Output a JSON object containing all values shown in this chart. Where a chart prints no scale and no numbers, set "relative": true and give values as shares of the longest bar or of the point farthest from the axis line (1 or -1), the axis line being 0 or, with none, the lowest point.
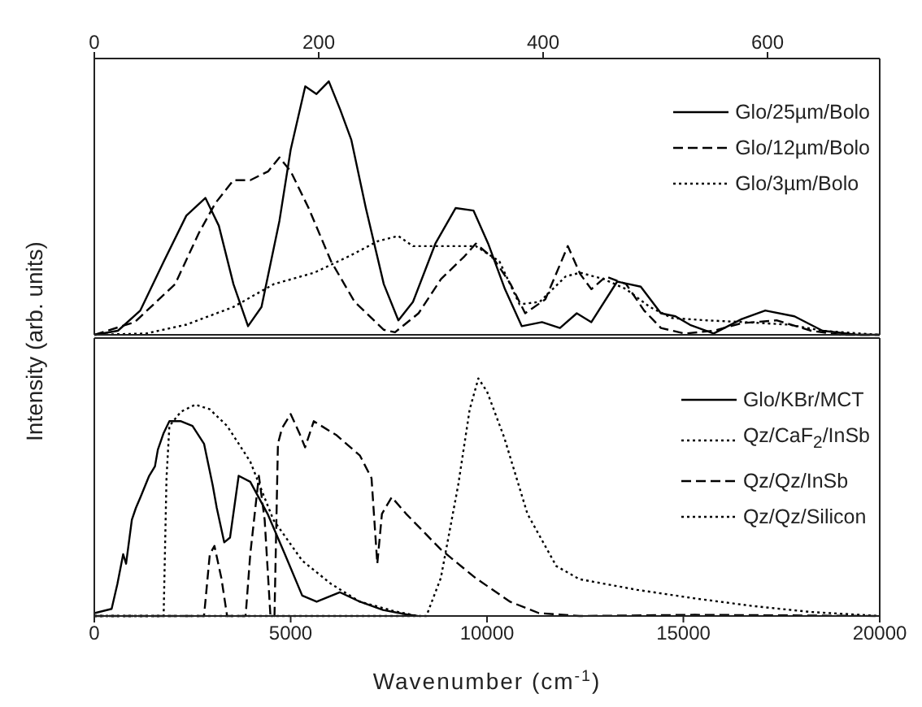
{
  "chart_data": [
    {
      "type": "line",
      "ylabel": "Intensity (arb. units)",
      "relative": true,
      "xlim": [
        0,
        700
      ],
      "xticks": [
        0,
        200,
        400,
        600
      ],
      "tick_labels": "x",
      "legend": "top right",
      "series": [
        {
          "name": "Glo/25µm/Bolo",
          "color": "#000000",
          "line_style": "solid",
          "x": [
            0,
            21,
            41,
            62,
            82,
            99,
            111,
            124,
            137,
            149,
            165,
            175,
            188,
            198,
            209,
            219,
            229,
            242,
            258,
            271,
            284,
            304,
            322,
            338,
            351,
            366,
            381,
            399,
            415,
            430,
            443,
            466,
            487,
            505,
            518,
            531,
            552,
            577,
            598,
            624,
            649,
            680,
            700
          ],
          "values": [
            0,
            0.016,
            0.096,
            0.29,
            0.47,
            0.54,
            0.43,
            0.2,
            0.034,
            0.11,
            0.45,
            0.73,
            0.98,
            0.95,
            1,
            0.89,
            0.77,
            0.5,
            0.2,
            0.057,
            0.13,
            0.36,
            0.5,
            0.49,
            0.36,
            0.18,
            0.034,
            0.05,
            0.027,
            0.085,
            0.05,
            0.21,
            0.19,
            0.085,
            0.073,
            0.039,
            0.005,
            0.062,
            0.096,
            0.073,
            0.016,
            0,
            0
          ]
        },
        {
          "name": "Glo/12µm/Bolo",
          "color": "#000000",
          "line_style": "dashed",
          "x": [
            0,
            36,
            72,
            93,
            108,
            124,
            139,
            155,
            165,
            175,
            191,
            211,
            232,
            258,
            268,
            289,
            309,
            330,
            340,
            356,
            371,
            384,
            402,
            422,
            433,
            443,
            456,
            474,
            490,
            505,
            526,
            552,
            577,
            608,
            639,
            665,
            700
          ],
          "values": [
            0,
            0.05,
            0.2,
            0.4,
            0.52,
            0.61,
            0.61,
            0.645,
            0.7,
            0.645,
            0.5,
            0.29,
            0.13,
            0.02,
            0.01,
            0.085,
            0.22,
            0.31,
            0.36,
            0.3,
            0.2,
            0.085,
            0.14,
            0.35,
            0.24,
            0.18,
            0.23,
            0.2,
            0.096,
            0.027,
            0.005,
            0.016,
            0.046,
            0.057,
            0.016,
            0,
            0
          ]
        },
        {
          "name": "Glo/3µm/Bolo",
          "color": "#000000",
          "line_style": "dotted",
          "x": [
            0,
            46,
            82,
            124,
            160,
            196,
            227,
            253,
            271,
            284,
            309,
            340,
            361,
            379,
            397,
            420,
            433,
            454,
            474,
            495,
            515,
            546,
            588,
            619,
            649,
            700
          ],
          "values": [
            0,
            0.005,
            0.04,
            0.11,
            0.2,
            0.245,
            0.31,
            0.37,
            0.39,
            0.35,
            0.35,
            0.35,
            0.29,
            0.12,
            0.13,
            0.23,
            0.245,
            0.22,
            0.18,
            0.11,
            0.066,
            0.057,
            0.048,
            0.04,
            0.016,
            0
          ]
        }
      ]
    },
    {
      "type": "line",
      "xlabel": "Wavenumber (cm$^{-1}$)",
      "relative": true,
      "xlim": [
        0,
        20000
      ],
      "xticks": [
        0,
        5000,
        10000,
        15000,
        20000
      ],
      "tick_labels": "x",
      "legend": "top right",
      "series": [
        {
          "name": "Glo/KBr/MCT",
          "color": "#000000",
          "line_style": "solid",
          "x": [
            0,
            441,
            588,
            735,
            809,
            956,
            1059,
            1176,
            1397,
            1544,
            1618,
            1765,
            1912,
            2206,
            2500,
            2794,
            3015,
            3118,
            3309,
            3456,
            3676,
            3971,
            4412,
            4853,
            5294,
            5662,
            6250,
            6765,
            7353,
            7941,
            8235
          ],
          "values": [
            0.012,
            0.03,
            0.135,
            0.26,
            0.22,
            0.405,
            0.455,
            0.5,
            0.59,
            0.63,
            0.7,
            0.77,
            0.82,
            0.82,
            0.8,
            0.725,
            0.55,
            0.455,
            0.31,
            0.33,
            0.59,
            0.565,
            0.43,
            0.26,
            0.086,
            0.06,
            0.1,
            0.06,
            0.025,
            0.007,
            0
          ]
        },
        {
          "name": "Qz/CaF$_{2}$/InSb",
          "color": "#000000",
          "line_style": "dotted",
          "x": [
            0,
            1765,
            1838,
            1912,
            2206,
            2574,
            2941,
            3382,
            3971,
            4559,
            5294,
            6029,
            6765,
            7647,
            8235
          ],
          "values": [
            0,
            0,
            0.58,
            0.8,
            0.86,
            0.89,
            0.87,
            0.8,
            0.65,
            0.405,
            0.233,
            0.135,
            0.06,
            0.02,
            0
          ]
        },
        {
          "name": "Qz/Qz/InSb",
          "color": "#000000",
          "line_style": "dashed",
          "x": [
            0,
            2794,
            2941,
            3059,
            3235,
            3382,
            3853,
            3971,
            4191,
            4338,
            4485,
            4588,
            4676,
            4779,
            5000,
            5221,
            5368,
            5588,
            6176,
            6765,
            7059,
            7206,
            7324,
            7574,
            7941,
            8824,
            9706,
            10588,
            11324,
            12353,
            15294,
            20000
          ],
          "values": [
            0,
            0,
            0.26,
            0.295,
            0.16,
            0,
            0,
            0.26,
            0.59,
            0.405,
            0,
            0,
            0.725,
            0.79,
            0.85,
            0.77,
            0.71,
            0.82,
            0.76,
            0.675,
            0.58,
            0.22,
            0.43,
            0.5,
            0.43,
            0.28,
            0.16,
            0.06,
            0.012,
            0,
            0.005,
            0
          ]
        },
        {
          "name": "Qz/Qz/Silicon",
          "color": "#000000",
          "line_style": "dotted",
          "x": [
            0,
            8456,
            8824,
            9265,
            9559,
            9779,
            10000,
            10441,
            11029,
            11765,
            12353,
            13824,
            15294,
            16765,
            18235,
            20000
          ],
          "values": [
            0,
            0,
            0.16,
            0.55,
            0.87,
            1,
            0.945,
            0.75,
            0.43,
            0.21,
            0.155,
            0.11,
            0.074,
            0.042,
            0.017,
            0
          ]
        }
      ]
    }
  ]
}
